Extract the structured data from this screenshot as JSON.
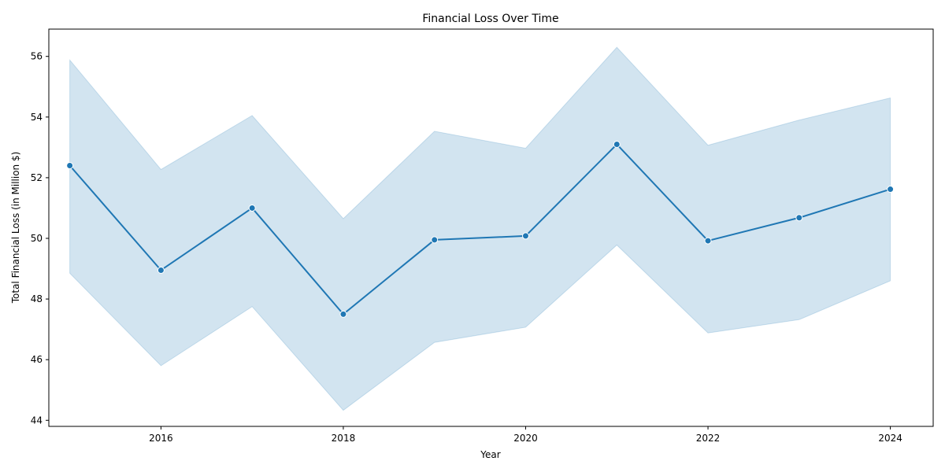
{
  "chart_data": {
    "type": "line",
    "title": "Financial Loss Over Time",
    "xlabel": "Year",
    "ylabel": "Total Financial Loss (in Million $)",
    "xlim": [
      2014.77,
      2024.47
    ],
    "ylim": [
      43.8,
      56.9
    ],
    "x_ticks": [
      2016,
      2018,
      2020,
      2022,
      2024
    ],
    "y_ticks": [
      44,
      46,
      48,
      50,
      52,
      54,
      56
    ],
    "grid": false,
    "legend": "none",
    "colors": {
      "line": "#1f77b4",
      "band": "#1f77b4",
      "band_opacity": 0.2
    },
    "series": [
      {
        "x": [
          2015,
          2016,
          2017,
          2018,
          2019,
          2020,
          2021,
          2022,
          2023,
          2024
        ],
        "y": [
          52.4,
          48.95,
          51.0,
          47.5,
          49.95,
          50.08,
          53.1,
          49.92,
          50.68,
          51.62
        ],
        "ci_upper": [
          55.88,
          52.27,
          54.05,
          50.65,
          53.53,
          52.97,
          56.3,
          53.07,
          53.9,
          54.63
        ],
        "ci_lower": [
          48.85,
          45.8,
          47.75,
          44.33,
          46.57,
          47.07,
          49.78,
          46.88,
          47.32,
          48.6
        ]
      }
    ]
  }
}
